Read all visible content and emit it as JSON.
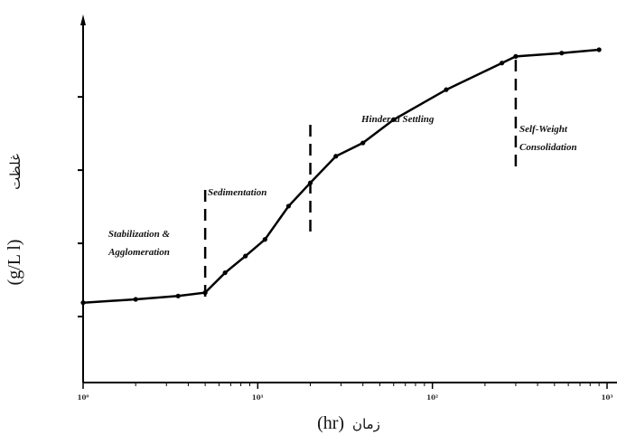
{
  "chart_data": {
    "type": "line",
    "xscale": "log",
    "xlim": [
      1,
      1000
    ],
    "ylim": [
      0,
      100
    ],
    "x_tick_labels": [
      "10⁰",
      "10¹",
      "10²",
      "10³"
    ],
    "xlabel": {
      "ar": "زمان",
      "unit": "(hr)"
    },
    "ylabel": {
      "ar": "غلظت",
      "unit": "(g/L l)"
    },
    "grid": false,
    "series": [
      {
        "x": [
          1,
          2,
          3.5,
          5,
          6.5,
          8.5,
          11,
          15,
          20,
          28,
          40,
          60,
          120,
          250,
          300,
          550,
          900
        ],
        "y": [
          24,
          25,
          26,
          27,
          33,
          38,
          43,
          53,
          60,
          68,
          72,
          79,
          88,
          96,
          98,
          99,
          100
        ]
      }
    ],
    "dividers_x": [
      5,
      20,
      300
    ],
    "regions": [
      {
        "label": "Stabilization &",
        "label2": "Agglomeration"
      },
      {
        "label": "Sedimentation"
      },
      {
        "label": "Hindered Settling"
      },
      {
        "label": "Self-Weight",
        "label2": "Consolidation"
      }
    ]
  }
}
